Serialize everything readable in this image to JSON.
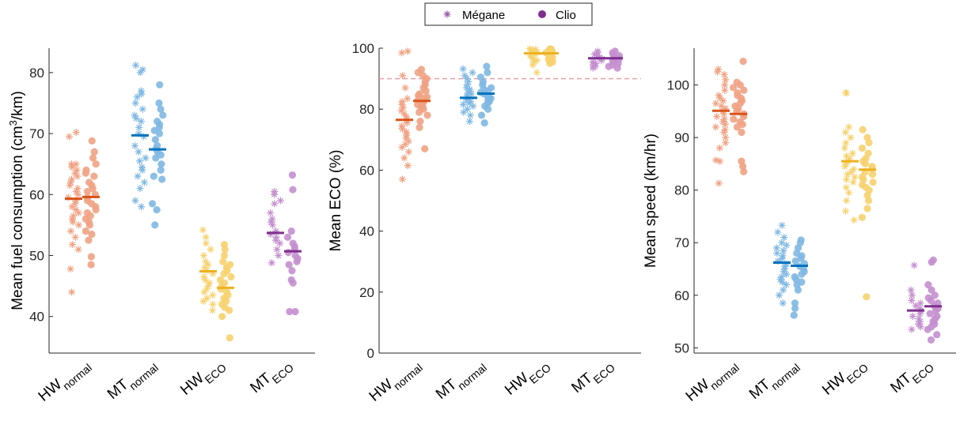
{
  "legend": {
    "items": [
      {
        "label": "Mégane",
        "marker": "asterisk",
        "color": "#9b59a6"
      },
      {
        "label": "Clio",
        "marker": "circle",
        "color": "#7e2f8e"
      }
    ]
  },
  "colors": {
    "HW_normal": {
      "light": "#f0a283",
      "mean": "#d95319"
    },
    "MT_normal": {
      "light": "#7fb8e3",
      "mean": "#0072bd"
    },
    "HW_ECO": {
      "light": "#f6d26e",
      "mean": "#edb120"
    },
    "MT_ECO": {
      "light": "#c48fcf",
      "mean": "#7e2f8e"
    },
    "threshold": "#e8a0a8"
  },
  "categories": [
    {
      "main": "HW",
      "sub": "normal"
    },
    {
      "main": "MT",
      "sub": "normal"
    },
    {
      "main": "HW",
      "sub": "ECO"
    },
    {
      "main": "MT",
      "sub": "ECO"
    }
  ],
  "chart_data": [
    {
      "type": "scatter",
      "ylabel_main": "Mean fuel consumption (cm",
      "ylabel_sup": "3",
      "ylabel_end": "/km)",
      "ylim": [
        34,
        84
      ],
      "yticks": [
        40,
        50,
        60,
        70,
        80
      ],
      "groups": [
        {
          "key": "HW_normal",
          "megane": [
            44,
            47.8,
            51,
            51.8,
            53,
            54,
            55,
            55.5,
            56,
            56.5,
            57,
            57.5,
            58,
            58.5,
            59,
            59.5,
            60,
            60.5,
            61,
            61.5,
            62,
            62.5,
            63,
            63.5,
            64,
            64.5,
            65,
            65,
            69.5,
            70.2
          ],
          "clio": [
            48.5,
            49.8,
            52.5,
            53.5,
            54,
            55,
            55.5,
            56,
            56.5,
            57,
            57.5,
            58,
            58.5,
            59,
            59.5,
            60,
            60.5,
            61,
            61.5,
            62,
            63,
            63.5,
            64,
            65,
            66,
            67,
            68.8
          ],
          "megane_mean": 59.3,
          "clio_mean": 59.6
        },
        {
          "key": "MT_normal",
          "megane": [
            58,
            59,
            61,
            62,
            63,
            64,
            64.5,
            65.5,
            66,
            67,
            68,
            69.5,
            70,
            71,
            72,
            72.5,
            73,
            74,
            75,
            76,
            76.5,
            77,
            80,
            80.5,
            81.2
          ],
          "clio": [
            55,
            57.5,
            58.5,
            62.5,
            63,
            64,
            65,
            66,
            66.5,
            67,
            67.5,
            68,
            69,
            70,
            70.5,
            71,
            71.5,
            72,
            73,
            74,
            75,
            78
          ],
          "megane_mean": 69.7,
          "clio_mean": 67.4
        },
        {
          "key": "HW_ECO",
          "megane": [
            41,
            42,
            42.5,
            43,
            43.5,
            44,
            44.5,
            45,
            45.5,
            46,
            46.5,
            47,
            47.5,
            48,
            48.5,
            49,
            50,
            51,
            52,
            53,
            54.2
          ],
          "clio": [
            36.5,
            40,
            41,
            41.5,
            42,
            42.5,
            43,
            43.5,
            44,
            44.5,
            45,
            45.5,
            46,
            46.5,
            47,
            47.5,
            48,
            48.5,
            49,
            50,
            51,
            51.8
          ],
          "megane_mean": 47.4,
          "clio_mean": 44.7
        },
        {
          "key": "MT_ECO",
          "megane": [
            48.8,
            50,
            51,
            52,
            52.5,
            53,
            53.5,
            54,
            55,
            55.5,
            56,
            57,
            58.5,
            59,
            60,
            60.5
          ],
          "clio": [
            40.8,
            40.8,
            45.5,
            46,
            47.5,
            48.5,
            49,
            49.5,
            50,
            50.5,
            51,
            51.5,
            52,
            53,
            54,
            60.8,
            63.2
          ],
          "megane_mean": 53.7,
          "clio_mean": 50.7
        }
      ]
    },
    {
      "type": "scatter",
      "ylabel_main": "Mean ECO (%)",
      "ylim": [
        0,
        100
      ],
      "yticks": [
        0,
        20,
        40,
        60,
        80,
        100
      ],
      "threshold": 90,
      "groups": [
        {
          "key": "HW_normal",
          "megane": [
            57,
            61.5,
            64,
            66,
            67.5,
            68.5,
            69.5,
            70.5,
            71.5,
            72.5,
            73.5,
            74.5,
            75.5,
            76.5,
            77.5,
            78.5,
            79.5,
            80.5,
            81.5,
            82.5,
            83.5,
            87,
            91,
            98.5,
            99
          ],
          "clio": [
            67,
            74,
            76,
            78,
            79,
            80,
            80.5,
            81,
            81.5,
            82,
            82.5,
            83,
            83.5,
            84,
            84.5,
            85,
            86,
            87,
            88,
            89,
            90,
            91,
            92,
            93
          ],
          "megane_mean": 76.5,
          "clio_mean": 82.7
        },
        {
          "key": "MT_normal",
          "megane": [
            76,
            78,
            79,
            80,
            81,
            81.5,
            82,
            82.5,
            83,
            83.5,
            84,
            84.5,
            85,
            85.5,
            86,
            86.5,
            87,
            88,
            89,
            90,
            91,
            92,
            93.2
          ],
          "clio": [
            75.5,
            78,
            80,
            81,
            82,
            82.5,
            83,
            83.5,
            84,
            84.5,
            85,
            85.5,
            86,
            86.5,
            87,
            88,
            89,
            90.5,
            92,
            94
          ],
          "megane_mean": 83.7,
          "clio_mean": 85.1
        },
        {
          "key": "HW_ECO",
          "megane": [
            92,
            94.5,
            95.5,
            96,
            96.5,
            97,
            97.5,
            98,
            98.5,
            99,
            99.2,
            99.4,
            99.6,
            99.8
          ],
          "clio": [
            95,
            95.5,
            96,
            96.5,
            97,
            97.5,
            98,
            98.5,
            99,
            99.2,
            99.4,
            99.6,
            99.8
          ],
          "megane_mean": 98.3,
          "clio_mean": 98.3
        },
        {
          "key": "MT_ECO",
          "megane": [
            93.5,
            94,
            94.5,
            95,
            95.5,
            96,
            96.5,
            97,
            97.5,
            98,
            98.5,
            99
          ],
          "clio": [
            93.5,
            94,
            94.5,
            95,
            95.5,
            96,
            96.5,
            97,
            97.5,
            98,
            98.5,
            99
          ],
          "megane_mean": 96.7,
          "clio_mean": 96.7
        }
      ]
    },
    {
      "type": "scatter",
      "ylabel_main": "Mean speed (km/hr)",
      "ylim": [
        49,
        107
      ],
      "yticks": [
        50,
        60,
        70,
        80,
        90,
        100
      ],
      "groups": [
        {
          "key": "HW_normal",
          "megane": [
            81.3,
            85.5,
            85.7,
            88,
            89,
            90,
            91,
            91.5,
            92,
            92.5,
            93,
            93.5,
            94,
            94.5,
            95,
            95.5,
            96,
            96.5,
            97,
            97.5,
            98,
            99,
            100,
            101,
            102,
            102.5,
            103
          ],
          "clio": [
            83.5,
            84.5,
            85.5,
            91,
            92,
            92.5,
            93,
            93.5,
            94,
            94.5,
            95,
            95.5,
            96,
            96.5,
            97,
            97.5,
            98,
            98.5,
            99,
            99.5,
            100,
            100.5,
            104.5
          ],
          "megane_mean": 95.1,
          "clio_mean": 94.5
        },
        {
          "key": "MT_normal",
          "megane": [
            58.5,
            60,
            61,
            62,
            62.5,
            63,
            63.5,
            64,
            64.5,
            65,
            65.5,
            66,
            66.5,
            67,
            67.5,
            68,
            68.5,
            69,
            69.5,
            70,
            71,
            72,
            73.3
          ],
          "clio": [
            56.2,
            57.5,
            58.5,
            61,
            62,
            62.5,
            63,
            63.5,
            64,
            64.5,
            65,
            65.5,
            66,
            66.5,
            67,
            67.5,
            68,
            69,
            70,
            70.5
          ],
          "megane_mean": 66.2,
          "clio_mean": 65.6
        },
        {
          "key": "HW_ECO",
          "megane": [
            74.3,
            76,
            78,
            79.5,
            80.5,
            81.5,
            82,
            82.5,
            83,
            83.5,
            84,
            84.5,
            85,
            85.5,
            86,
            86.5,
            87,
            88,
            89,
            90,
            91,
            92,
            98.5,
            98.5
          ],
          "clio": [
            59.7,
            74.8,
            76.5,
            78,
            79,
            80,
            80.5,
            81,
            81.5,
            82,
            82.5,
            83,
            83.5,
            84,
            84.5,
            85,
            85.5,
            86,
            87,
            88,
            89,
            90,
            91.5
          ],
          "megane_mean": 85.5,
          "clio_mean": 83.9
        },
        {
          "key": "MT_ECO",
          "megane": [
            53.5,
            54,
            54.5,
            55,
            55.5,
            56,
            56.5,
            57,
            57.5,
            58,
            58.5,
            59,
            60,
            61,
            65.7
          ],
          "clio": [
            51.5,
            52.5,
            53.5,
            54,
            54.5,
            55,
            55.5,
            56,
            56.5,
            57,
            57.5,
            58,
            58.5,
            59,
            59.5,
            60,
            61,
            62,
            66.3,
            66.7
          ],
          "megane_mean": 57.1,
          "clio_mean": 57.9
        }
      ]
    }
  ]
}
